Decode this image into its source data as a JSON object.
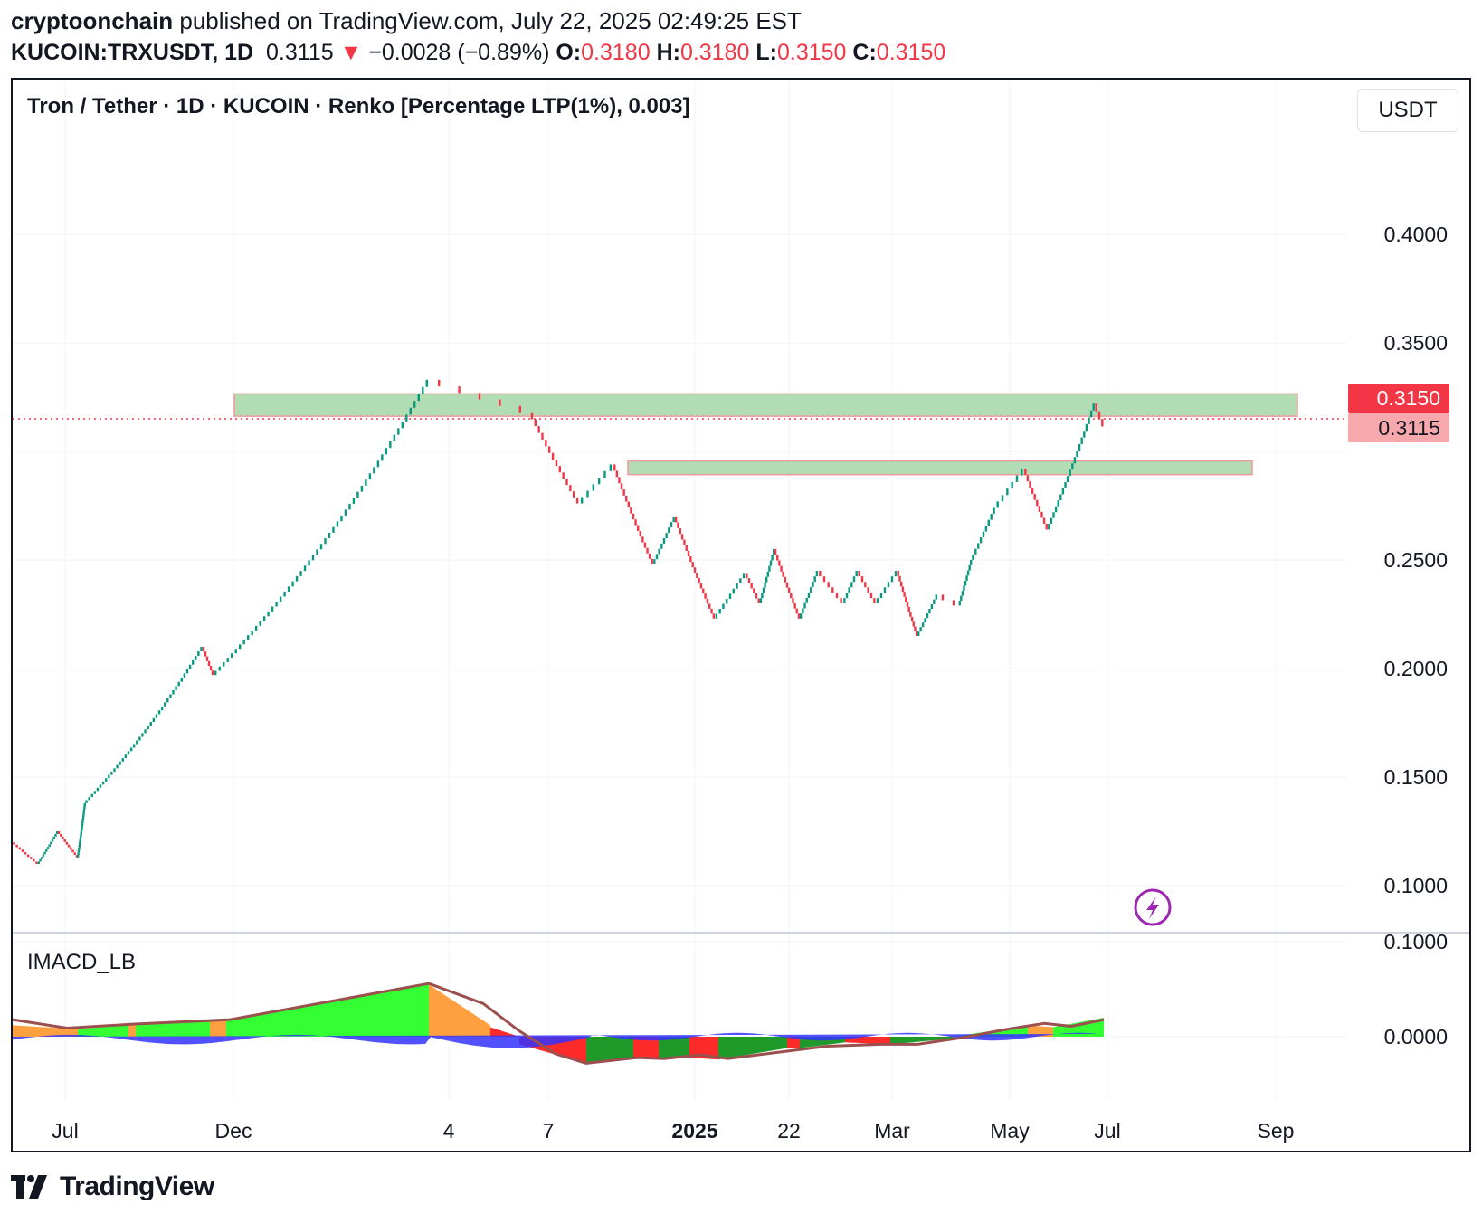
{
  "header": {
    "author": "cryptoonchain",
    "published_text": " published on TradingView.com, July 22, 2025 02:49:25 EST",
    "symbol": "KUCOIN:TRXUSDT, 1D",
    "last": "0.3115",
    "arrow": "▼",
    "change": "−0.0028 (−0.89%)",
    "o_label": "O:",
    "o_val": "0.3180",
    "h_label": "H:",
    "h_val": "0.3180",
    "l_label": "L:",
    "l_val": "0.3150",
    "c_label": "C:",
    "c_val": "0.3150"
  },
  "chart_title": "Tron / Tether · 1D · KUCOIN · Renko [Percentage LTP(1%), 0.003]",
  "currency": "USDT",
  "indicator_name": "IMACD_LB",
  "brand": "TradingView",
  "colors": {
    "up": "#089981",
    "down": "#f23645",
    "zone_fill": "#a5d6a7",
    "zone_border": "#ef9a9a",
    "hist_green": "#33ff33",
    "hist_orange": "#ffa040",
    "hist_red": "#ff2a2a",
    "hist_darkgreen": "#1f9a2a",
    "hist_blue": "#3333ff",
    "signal": "#9c4f4f",
    "price_tag_close": "#f23645",
    "price_tag_last": "#f7a8ad"
  },
  "chart_data": [
    {
      "type": "line",
      "subtype": "renko",
      "x_labels": [
        "Jul",
        "Dec",
        "4",
        "7",
        "2025",
        "22",
        "Mar",
        "May",
        "Jul",
        "Sep"
      ],
      "y_ticks": [
        "0.4000",
        "0.3500",
        "0.2500",
        "0.2000",
        "0.1500",
        "0.1000"
      ],
      "ylim": [
        0.085,
        0.44
      ],
      "grid": true,
      "path_x": [
        0,
        28,
        50,
        72,
        80,
        210,
        222,
        460,
        572,
        626,
        664,
        708,
        732,
        776,
        810,
        826,
        842,
        870,
        890,
        918,
        934,
        954,
        978,
        1000,
        1022,
        1046,
        1060,
        1086,
        1118,
        1144,
        1196,
        1206
      ],
      "path_y": [
        0.12,
        0.11,
        0.125,
        0.113,
        0.138,
        0.21,
        0.197,
        0.333,
        0.318,
        0.276,
        0.294,
        0.248,
        0.27,
        0.223,
        0.244,
        0.23,
        0.255,
        0.223,
        0.245,
        0.23,
        0.245,
        0.23,
        0.245,
        0.215,
        0.234,
        0.229,
        0.25,
        0.274,
        0.292,
        0.264,
        0.322,
        0.3115
      ],
      "zones": [
        {
          "x_from": 245,
          "x_to": 1420,
          "top": 0.3265,
          "bottom": 0.3162
        },
        {
          "x_from": 680,
          "x_to": 1370,
          "top": 0.2956,
          "bottom": 0.2893
        }
      ],
      "price_labels": [
        {
          "value": 0.315,
          "text": "0.3150",
          "role": "close"
        },
        {
          "value": 0.3115,
          "text": "0.3115",
          "role": "last"
        }
      ]
    },
    {
      "type": "bar",
      "name": "IMACD_LB",
      "y_ticks": [
        "0.1000",
        "0.0000"
      ],
      "ylim": [
        -0.03,
        0.1
      ],
      "note_x_index_range": [
        0,
        1206
      ],
      "segments": [
        {
          "x_from": 0,
          "x_to": 72,
          "color": "orange",
          "v0": 0.012,
          "v1": 0.008
        },
        {
          "x_from": 72,
          "x_to": 128,
          "color": "green",
          "v0": 0.008,
          "v1": 0.012
        },
        {
          "x_from": 128,
          "x_to": 136,
          "color": "orange",
          "v0": 0.012,
          "v1": 0.012
        },
        {
          "x_from": 136,
          "x_to": 218,
          "color": "green",
          "v0": 0.012,
          "v1": 0.017
        },
        {
          "x_from": 218,
          "x_to": 236,
          "color": "orange",
          "v0": 0.017,
          "v1": 0.017
        },
        {
          "x_from": 236,
          "x_to": 460,
          "color": "green",
          "v0": 0.017,
          "v1": 0.055
        },
        {
          "x_from": 460,
          "x_to": 528,
          "color": "orange",
          "v0": 0.055,
          "v1": 0.012
        },
        {
          "x_from": 528,
          "x_to": 560,
          "color": "red",
          "v0": 0.01,
          "v1": 0.0
        },
        {
          "x_from": 560,
          "x_to": 634,
          "color": "red",
          "v0": -0.008,
          "v1": -0.028
        },
        {
          "x_from": 634,
          "x_to": 686,
          "color": "darkgreen",
          "v0": -0.028,
          "v1": -0.022
        },
        {
          "x_from": 686,
          "x_to": 714,
          "color": "red",
          "v0": -0.022,
          "v1": -0.024
        },
        {
          "x_from": 714,
          "x_to": 748,
          "color": "darkgreen",
          "v0": -0.024,
          "v1": -0.022
        },
        {
          "x_from": 748,
          "x_to": 780,
          "color": "red",
          "v0": -0.022,
          "v1": -0.024
        },
        {
          "x_from": 780,
          "x_to": 856,
          "color": "darkgreen",
          "v0": -0.024,
          "v1": -0.012
        },
        {
          "x_from": 856,
          "x_to": 870,
          "color": "red",
          "v0": -0.012,
          "v1": -0.012
        },
        {
          "x_from": 870,
          "x_to": 920,
          "color": "darkgreen",
          "v0": -0.012,
          "v1": -0.006
        },
        {
          "x_from": 920,
          "x_to": 970,
          "color": "red",
          "v0": -0.006,
          "v1": -0.008
        },
        {
          "x_from": 970,
          "x_to": 1040,
          "color": "darkgreen",
          "v0": -0.008,
          "v1": -0.002
        },
        {
          "x_from": 1040,
          "x_to": 1122,
          "color": "green",
          "v0": 0.0,
          "v1": 0.012
        },
        {
          "x_from": 1122,
          "x_to": 1150,
          "color": "orange",
          "v0": 0.012,
          "v1": 0.01
        },
        {
          "x_from": 1150,
          "x_to": 1206,
          "color": "green",
          "v0": 0.01,
          "v1": 0.02
        }
      ],
      "signal_x": [
        0,
        60,
        130,
        240,
        460,
        520,
        560,
        600,
        634,
        690,
        720,
        760,
        790,
        850,
        900,
        960,
        1000,
        1050,
        1100,
        1140,
        1170,
        1206
      ],
      "signal_y": [
        0.018,
        0.009,
        0.013,
        0.018,
        0.056,
        0.035,
        0.006,
        -0.018,
        -0.028,
        -0.022,
        -0.023,
        -0.019,
        -0.023,
        -0.016,
        -0.01,
        -0.008,
        -0.008,
        -0.001,
        0.008,
        0.014,
        0.011,
        0.018
      ]
    }
  ]
}
